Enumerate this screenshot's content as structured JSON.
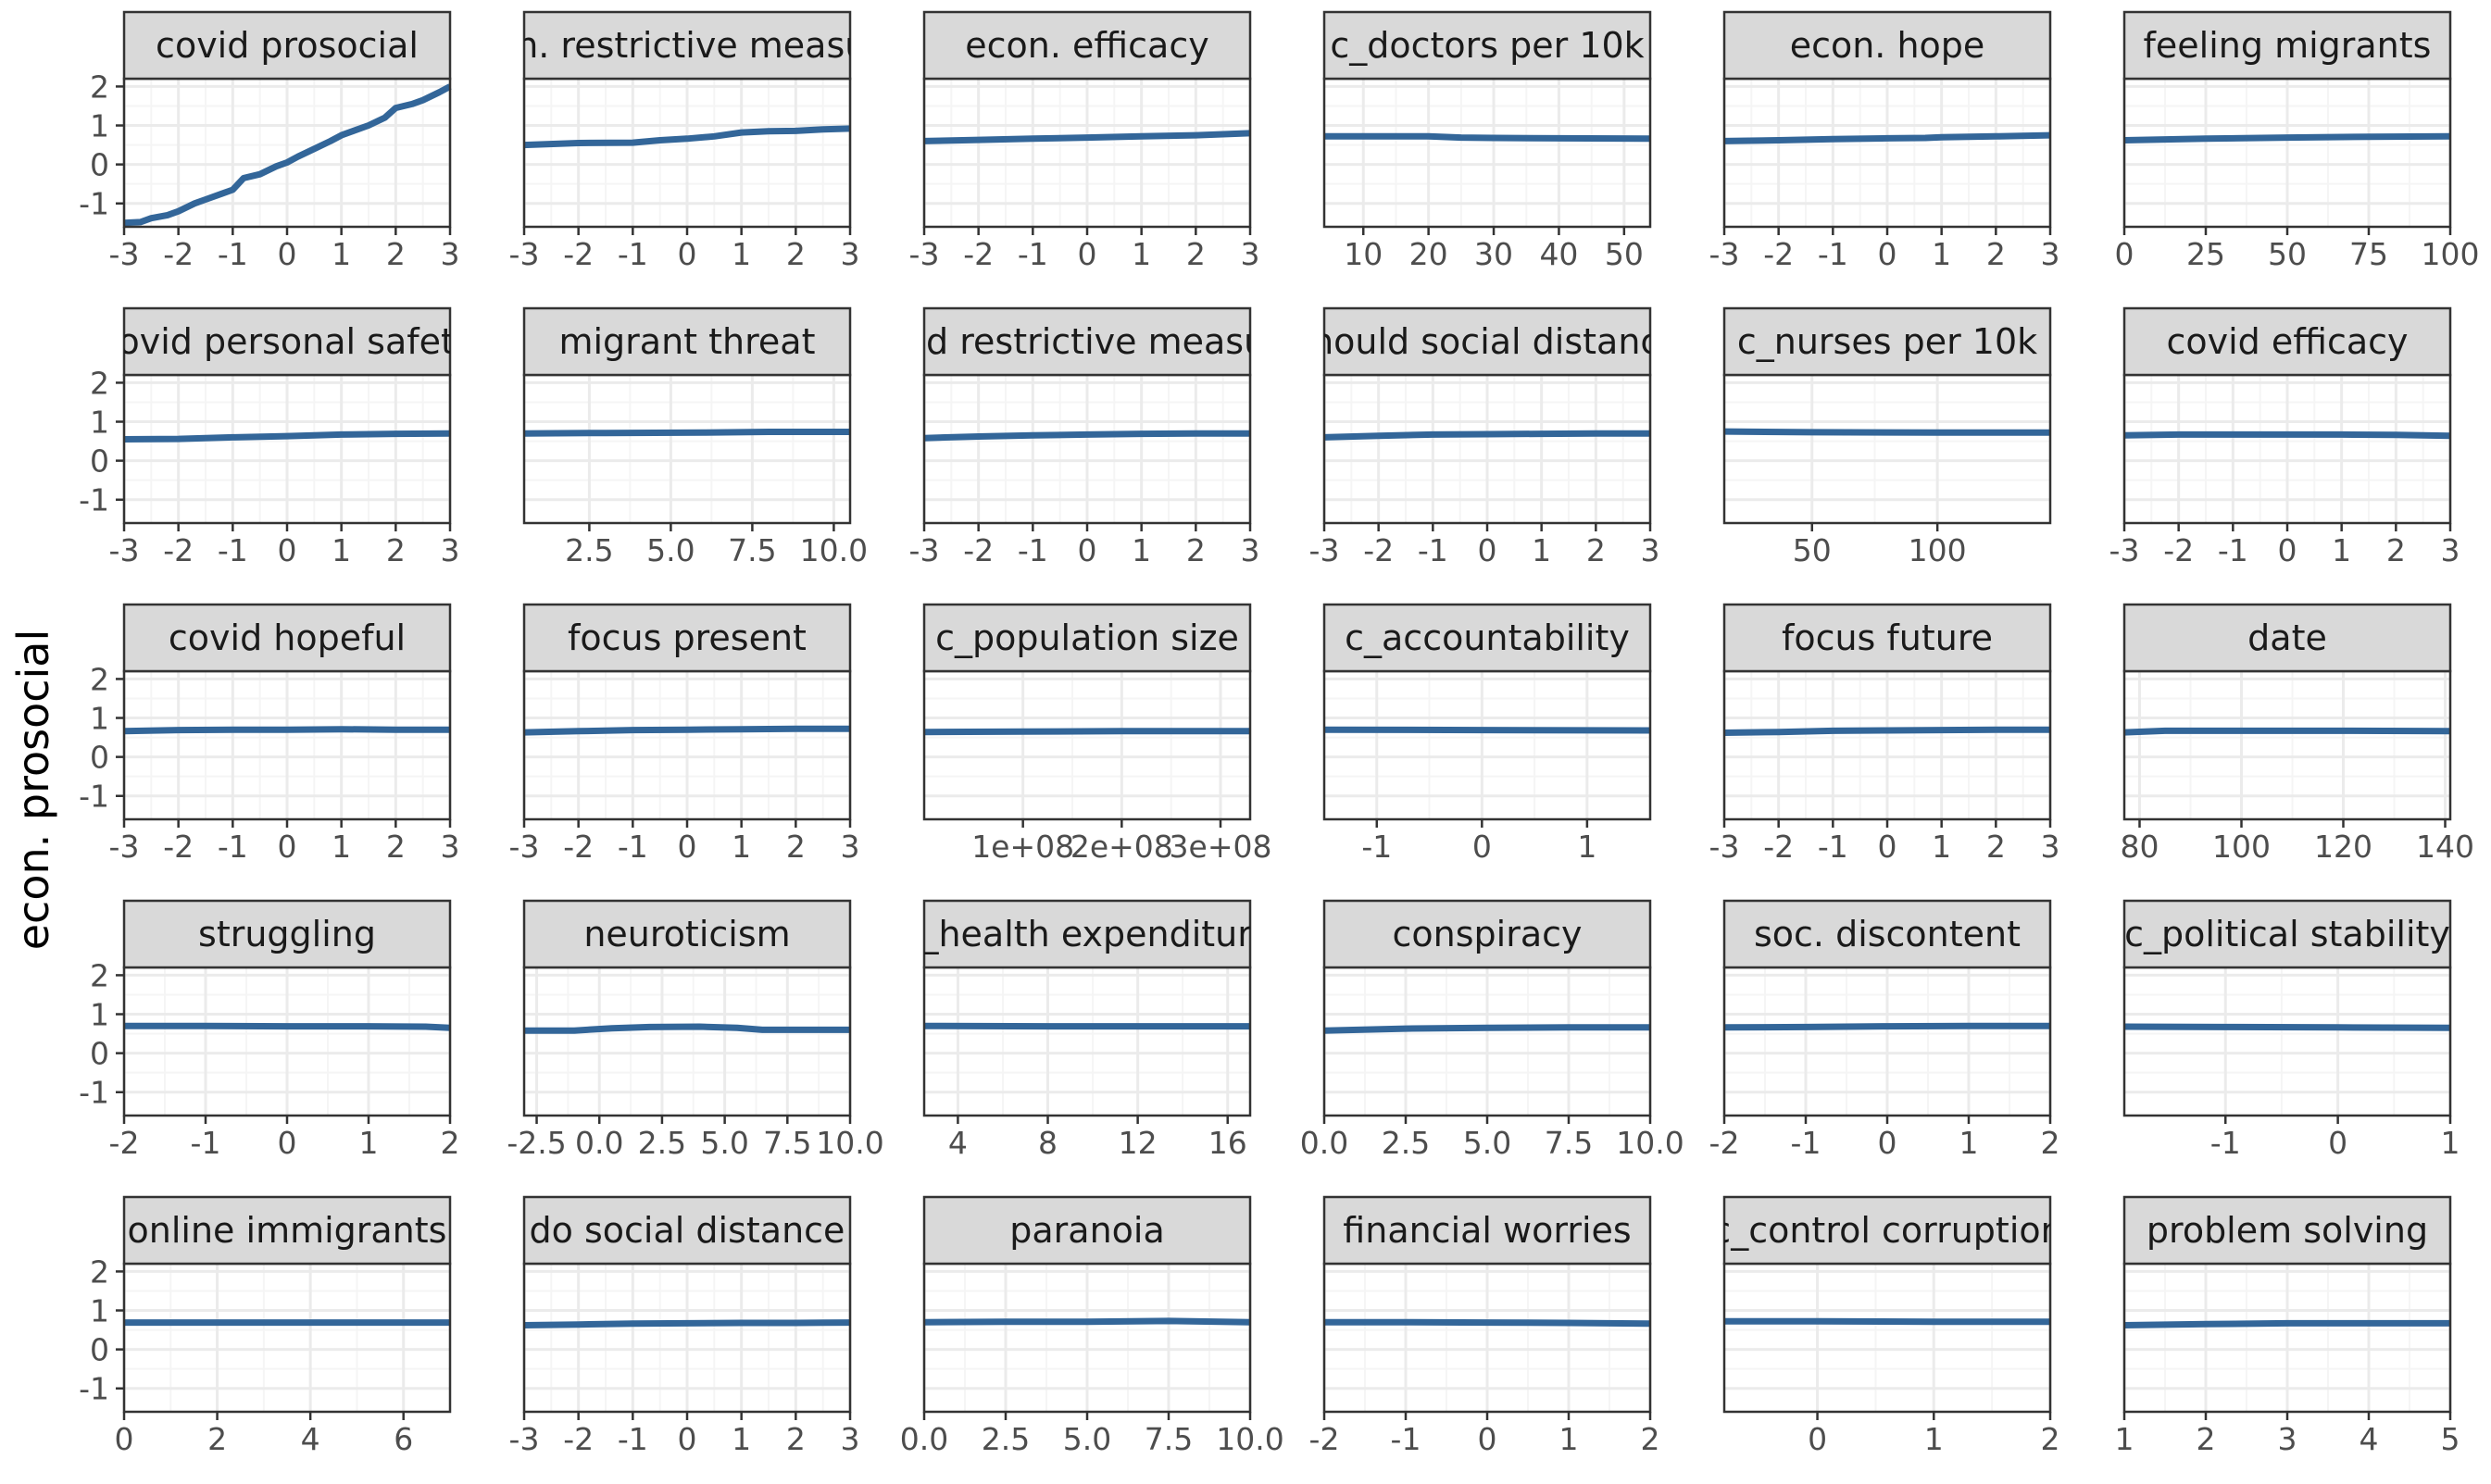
{
  "chart_data": {
    "type": "line",
    "ylabel": "econ. prosocial",
    "ylim": [
      -1.6,
      2.2
    ],
    "y_ticks": [
      -1,
      0,
      1,
      2
    ],
    "y_tick_labels": [
      "-1",
      "0",
      "1",
      "2"
    ],
    "grid": true,
    "layout": {
      "columns": 6,
      "rows": 5
    },
    "colors": {
      "line": "#336699",
      "strip_fill": "#d9d9d9",
      "strip_border": "#333333",
      "panel_border": "#333333",
      "grid_major": "#ebebeb",
      "grid_minor": "#f5f5f5",
      "tick_text": "#4d4d4d"
    },
    "panels": [
      {
        "title": "covid prosocial",
        "xlim": [
          -3,
          3
        ],
        "x_ticks": [
          -3,
          -2,
          -1,
          0,
          1,
          2,
          3
        ],
        "x_tick_labels": [
          "-3",
          "-2",
          "-1",
          "0",
          "1",
          "2",
          "3"
        ],
        "show_y": true,
        "x": [
          -3,
          -2.7,
          -2.5,
          -2.2,
          -2,
          -1.7,
          -1.5,
          -1.2,
          -1,
          -0.8,
          -0.5,
          -0.2,
          0,
          0.2,
          0.5,
          0.8,
          1,
          1.3,
          1.5,
          1.8,
          2,
          2.3,
          2.5,
          2.8,
          3
        ],
        "y": [
          -1.5,
          -1.48,
          -1.38,
          -1.3,
          -1.2,
          -1.0,
          -0.9,
          -0.75,
          -0.65,
          -0.35,
          -0.25,
          -0.05,
          0.05,
          0.2,
          0.4,
          0.6,
          0.75,
          0.9,
          1.0,
          1.2,
          1.45,
          1.55,
          1.65,
          1.85,
          2.0
        ]
      },
      {
        "title": "econ. restrictive measures",
        "xlim": [
          -3,
          3
        ],
        "x_ticks": [
          -3,
          -2,
          -1,
          0,
          1,
          2,
          3
        ],
        "x_tick_labels": [
          "-3",
          "-2",
          "-1",
          "0",
          "1",
          "2",
          "3"
        ],
        "show_y": false,
        "x": [
          -3,
          -2,
          -1,
          -0.5,
          0,
          0.5,
          1,
          1.5,
          2,
          2.5,
          3
        ],
        "y": [
          0.5,
          0.55,
          0.56,
          0.62,
          0.66,
          0.72,
          0.82,
          0.85,
          0.86,
          0.9,
          0.92
        ]
      },
      {
        "title": "econ. efficacy",
        "xlim": [
          -3,
          3
        ],
        "x_ticks": [
          -3,
          -2,
          -1,
          0,
          1,
          2,
          3
        ],
        "x_tick_labels": [
          "-3",
          "-2",
          "-1",
          "0",
          "1",
          "2",
          "3"
        ],
        "show_y": false,
        "x": [
          -3,
          -2,
          -1,
          0,
          1,
          2,
          3
        ],
        "y": [
          0.6,
          0.63,
          0.66,
          0.69,
          0.72,
          0.75,
          0.8
        ]
      },
      {
        "title": "c_doctors per 10k",
        "xlim": [
          4,
          54
        ],
        "x_ticks": [
          10,
          20,
          30,
          40,
          50
        ],
        "x_tick_labels": [
          "10",
          "20",
          "30",
          "40",
          "50"
        ],
        "show_y": false,
        "x": [
          4,
          10,
          20,
          25,
          30,
          40,
          54
        ],
        "y": [
          0.72,
          0.72,
          0.72,
          0.69,
          0.68,
          0.67,
          0.66
        ]
      },
      {
        "title": "econ. hope",
        "xlim": [
          -3,
          3
        ],
        "x_ticks": [
          -3,
          -2,
          -1,
          0,
          1,
          2,
          3
        ],
        "x_tick_labels": [
          "-3",
          "-2",
          "-1",
          "0",
          "1",
          "2",
          "3"
        ],
        "show_y": false,
        "x": [
          -3,
          -2,
          -1,
          0,
          0.7,
          1,
          2,
          3
        ],
        "y": [
          0.6,
          0.62,
          0.65,
          0.67,
          0.68,
          0.7,
          0.72,
          0.75
        ]
      },
      {
        "title": "feeling migrants",
        "xlim": [
          0,
          100
        ],
        "x_ticks": [
          0,
          25,
          50,
          75,
          100
        ],
        "x_tick_labels": [
          "0",
          "25",
          "50",
          "75",
          "100"
        ],
        "show_y": false,
        "x": [
          0,
          25,
          50,
          75,
          100
        ],
        "y": [
          0.62,
          0.66,
          0.69,
          0.71,
          0.72
        ]
      },
      {
        "title": "covid personal safety",
        "xlim": [
          -3,
          3
        ],
        "x_ticks": [
          -3,
          -2,
          -1,
          0,
          1,
          2,
          3
        ],
        "x_tick_labels": [
          "-3",
          "-2",
          "-1",
          "0",
          "1",
          "2",
          "3"
        ],
        "show_y": true,
        "x": [
          -3,
          -2,
          -1,
          0,
          1,
          2,
          3
        ],
        "y": [
          0.55,
          0.56,
          0.6,
          0.63,
          0.67,
          0.69,
          0.7
        ]
      },
      {
        "title": "migrant threat",
        "xlim": [
          0.5,
          10.5
        ],
        "x_ticks": [
          2.5,
          5.0,
          7.5,
          10.0
        ],
        "x_tick_labels": [
          "2.5",
          "5.0",
          "7.5",
          "10.0"
        ],
        "show_y": false,
        "x": [
          0.5,
          3,
          6,
          8,
          10.5
        ],
        "y": [
          0.7,
          0.71,
          0.72,
          0.74,
          0.74
        ]
      },
      {
        "title": "covid restrictive measures",
        "xlim": [
          -3,
          3
        ],
        "x_ticks": [
          -3,
          -2,
          -1,
          0,
          1,
          2,
          3
        ],
        "x_tick_labels": [
          "-3",
          "-2",
          "-1",
          "0",
          "1",
          "2",
          "3"
        ],
        "show_y": false,
        "x": [
          -3,
          -2,
          -1,
          0,
          1,
          2,
          3
        ],
        "y": [
          0.58,
          0.62,
          0.65,
          0.67,
          0.69,
          0.7,
          0.7
        ]
      },
      {
        "title": "should social distance",
        "xlim": [
          -3,
          3
        ],
        "x_ticks": [
          -3,
          -2,
          -1,
          0,
          1,
          2,
          3
        ],
        "x_tick_labels": [
          "-3",
          "-2",
          "-1",
          "0",
          "1",
          "2",
          "3"
        ],
        "show_y": false,
        "x": [
          -3,
          -2,
          -1,
          0,
          1,
          2,
          3
        ],
        "y": [
          0.6,
          0.64,
          0.67,
          0.68,
          0.69,
          0.7,
          0.7
        ]
      },
      {
        "title": "c_nurses per 10k",
        "xlim": [
          15,
          145
        ],
        "x_ticks": [
          50,
          100
        ],
        "x_tick_labels": [
          "50",
          "100"
        ],
        "show_y": false,
        "x": [
          15,
          50,
          100,
          145
        ],
        "y": [
          0.75,
          0.73,
          0.72,
          0.72
        ]
      },
      {
        "title": "covid efficacy",
        "xlim": [
          -3,
          3
        ],
        "x_ticks": [
          -3,
          -2,
          -1,
          0,
          1,
          2,
          3
        ],
        "x_tick_labels": [
          "-3",
          "-2",
          "-1",
          "0",
          "1",
          "2",
          "3"
        ],
        "show_y": false,
        "x": [
          -3,
          -2,
          -1,
          0,
          1,
          2,
          3
        ],
        "y": [
          0.65,
          0.67,
          0.67,
          0.67,
          0.67,
          0.66,
          0.64
        ]
      },
      {
        "title": "covid hopeful",
        "xlim": [
          -3,
          3
        ],
        "x_ticks": [
          -3,
          -2,
          -1,
          0,
          1,
          2,
          3
        ],
        "x_tick_labels": [
          "-3",
          "-2",
          "-1",
          "0",
          "1",
          "2",
          "3"
        ],
        "show_y": true,
        "x": [
          -3,
          -2,
          -1,
          0,
          1,
          2,
          3
        ],
        "y": [
          0.66,
          0.69,
          0.7,
          0.7,
          0.71,
          0.7,
          0.7
        ]
      },
      {
        "title": "focus present",
        "xlim": [
          -3,
          3
        ],
        "x_ticks": [
          -3,
          -2,
          -1,
          0,
          1,
          2,
          3
        ],
        "x_tick_labels": [
          "-3",
          "-2",
          "-1",
          "0",
          "1",
          "2",
          "3"
        ],
        "show_y": false,
        "x": [
          -3,
          -2,
          -1,
          0,
          1,
          2,
          3
        ],
        "y": [
          0.63,
          0.66,
          0.69,
          0.7,
          0.71,
          0.72,
          0.72
        ]
      },
      {
        "title": "c_population size",
        "xlim": [
          0,
          330000000
        ],
        "x_ticks": [
          100000000,
          200000000,
          300000000
        ],
        "x_tick_labels": [
          "1e+08",
          "2e+08",
          "3e+08"
        ],
        "show_y": false,
        "x": [
          0,
          100000000,
          200000000,
          330000000
        ],
        "y": [
          0.64,
          0.65,
          0.66,
          0.66
        ]
      },
      {
        "title": "c_accountability",
        "xlim": [
          -1.5,
          1.6
        ],
        "x_ticks": [
          -1,
          0,
          1
        ],
        "x_tick_labels": [
          "-1",
          "0",
          "1"
        ],
        "show_y": false,
        "x": [
          -1.5,
          0,
          1.6
        ],
        "y": [
          0.7,
          0.69,
          0.68
        ]
      },
      {
        "title": "focus future",
        "xlim": [
          -3,
          3
        ],
        "x_ticks": [
          -3,
          -2,
          -1,
          0,
          1,
          2,
          3
        ],
        "x_tick_labels": [
          "-3",
          "-2",
          "-1",
          "0",
          "1",
          "2",
          "3"
        ],
        "show_y": false,
        "x": [
          -3,
          -2,
          -1,
          0,
          1,
          2,
          3
        ],
        "y": [
          0.62,
          0.64,
          0.67,
          0.68,
          0.69,
          0.7,
          0.7
        ]
      },
      {
        "title": "date",
        "xlim": [
          77,
          141
        ],
        "x_ticks": [
          80,
          100,
          120,
          140
        ],
        "x_tick_labels": [
          "80",
          "100",
          "120",
          "140"
        ],
        "show_y": false,
        "x": [
          77,
          85,
          100,
          120,
          141
        ],
        "y": [
          0.63,
          0.67,
          0.67,
          0.67,
          0.66
        ]
      },
      {
        "title": "struggling",
        "xlim": [
          -2,
          2
        ],
        "x_ticks": [
          -2,
          -1,
          0,
          1,
          2
        ],
        "x_tick_labels": [
          "-2",
          "-1",
          "0",
          "1",
          "2"
        ],
        "show_y": true,
        "x": [
          -2,
          -1,
          0,
          1,
          1.7,
          2
        ],
        "y": [
          0.7,
          0.7,
          0.69,
          0.69,
          0.68,
          0.65
        ]
      },
      {
        "title": "neuroticism",
        "xlim": [
          -3,
          10
        ],
        "x_ticks": [
          -2.5,
          0.0,
          2.5,
          5.0,
          7.5,
          10.0
        ],
        "x_tick_labels": [
          "-2.5",
          "0.0",
          "2.5",
          "5.0",
          "7.5",
          "10.0"
        ],
        "show_y": false,
        "x": [
          -3,
          -1,
          0.5,
          2,
          4,
          5.5,
          6.5,
          8,
          10
        ],
        "y": [
          0.58,
          0.58,
          0.64,
          0.67,
          0.68,
          0.65,
          0.6,
          0.6,
          0.6
        ]
      },
      {
        "title": "c_health expenditure",
        "xlim": [
          2.5,
          17
        ],
        "x_ticks": [
          4,
          8,
          12,
          16
        ],
        "x_tick_labels": [
          "4",
          "8",
          "12",
          "16"
        ],
        "show_y": false,
        "x": [
          2.5,
          8,
          12,
          17
        ],
        "y": [
          0.7,
          0.69,
          0.69,
          0.69
        ]
      },
      {
        "title": "conspiracy",
        "xlim": [
          0,
          10
        ],
        "x_ticks": [
          0.0,
          2.5,
          5.0,
          7.5,
          10.0
        ],
        "x_tick_labels": [
          "0.0",
          "2.5",
          "5.0",
          "7.5",
          "10.0"
        ],
        "show_y": false,
        "x": [
          0,
          2.5,
          5,
          7.5,
          10
        ],
        "y": [
          0.58,
          0.63,
          0.65,
          0.66,
          0.66
        ]
      },
      {
        "title": "soc. discontent",
        "xlim": [
          -2,
          2
        ],
        "x_ticks": [
          -2,
          -1,
          0,
          1,
          2
        ],
        "x_tick_labels": [
          "-2",
          "-1",
          "0",
          "1",
          "2"
        ],
        "show_y": false,
        "x": [
          -2,
          -1,
          0,
          1,
          2
        ],
        "y": [
          0.66,
          0.67,
          0.69,
          0.7,
          0.7
        ]
      },
      {
        "title": "c_political stability",
        "xlim": [
          -1.9,
          1
        ],
        "x_ticks": [
          -1,
          0,
          1
        ],
        "x_tick_labels": [
          "-1",
          "0",
          "1"
        ],
        "show_y": false,
        "x": [
          -1.9,
          -1,
          0,
          1
        ],
        "y": [
          0.68,
          0.67,
          0.66,
          0.65
        ]
      },
      {
        "title": "online immigrants",
        "xlim": [
          0,
          7
        ],
        "x_ticks": [
          0,
          2,
          4,
          6
        ],
        "x_tick_labels": [
          "0",
          "2",
          "4",
          "6"
        ],
        "show_y": true,
        "x": [
          0,
          2,
          4,
          6,
          7
        ],
        "y": [
          0.69,
          0.69,
          0.69,
          0.69,
          0.69
        ]
      },
      {
        "title": "do social distance",
        "xlim": [
          -3,
          3
        ],
        "x_ticks": [
          -3,
          -2,
          -1,
          0,
          1,
          2,
          3
        ],
        "x_tick_labels": [
          "-3",
          "-2",
          "-1",
          "0",
          "1",
          "2",
          "3"
        ],
        "show_y": false,
        "x": [
          -3,
          -2,
          -1,
          0,
          1,
          2,
          3
        ],
        "y": [
          0.62,
          0.64,
          0.66,
          0.67,
          0.68,
          0.68,
          0.69
        ]
      },
      {
        "title": "paranoia",
        "xlim": [
          0,
          10
        ],
        "x_ticks": [
          0.0,
          2.5,
          5.0,
          7.5,
          10.0
        ],
        "x_tick_labels": [
          "0.0",
          "2.5",
          "5.0",
          "7.5",
          "10.0"
        ],
        "show_y": false,
        "x": [
          0,
          2.5,
          5,
          7.5,
          10
        ],
        "y": [
          0.7,
          0.71,
          0.71,
          0.73,
          0.7
        ]
      },
      {
        "title": "financial worries",
        "xlim": [
          -2,
          2
        ],
        "x_ticks": [
          -2,
          -1,
          0,
          1,
          2
        ],
        "x_tick_labels": [
          "-2",
          "-1",
          "0",
          "1",
          "2"
        ],
        "show_y": false,
        "x": [
          -2,
          -1,
          0,
          1,
          2
        ],
        "y": [
          0.7,
          0.7,
          0.69,
          0.68,
          0.66
        ]
      },
      {
        "title": "c_control corruption",
        "xlim": [
          -0.8,
          2
        ],
        "x_ticks": [
          0,
          1,
          2
        ],
        "x_tick_labels": [
          "0",
          "1",
          "2"
        ],
        "show_y": false,
        "x": [
          -0.8,
          0,
          1,
          2
        ],
        "y": [
          0.72,
          0.72,
          0.71,
          0.71
        ]
      },
      {
        "title": "problem solving",
        "xlim": [
          1,
          5
        ],
        "x_ticks": [
          1,
          2,
          3,
          4,
          5
        ],
        "x_tick_labels": [
          "1",
          "2",
          "3",
          "4",
          "5"
        ],
        "show_y": false,
        "x": [
          1,
          2,
          3,
          4,
          5
        ],
        "y": [
          0.62,
          0.65,
          0.67,
          0.67,
          0.67
        ]
      }
    ]
  }
}
